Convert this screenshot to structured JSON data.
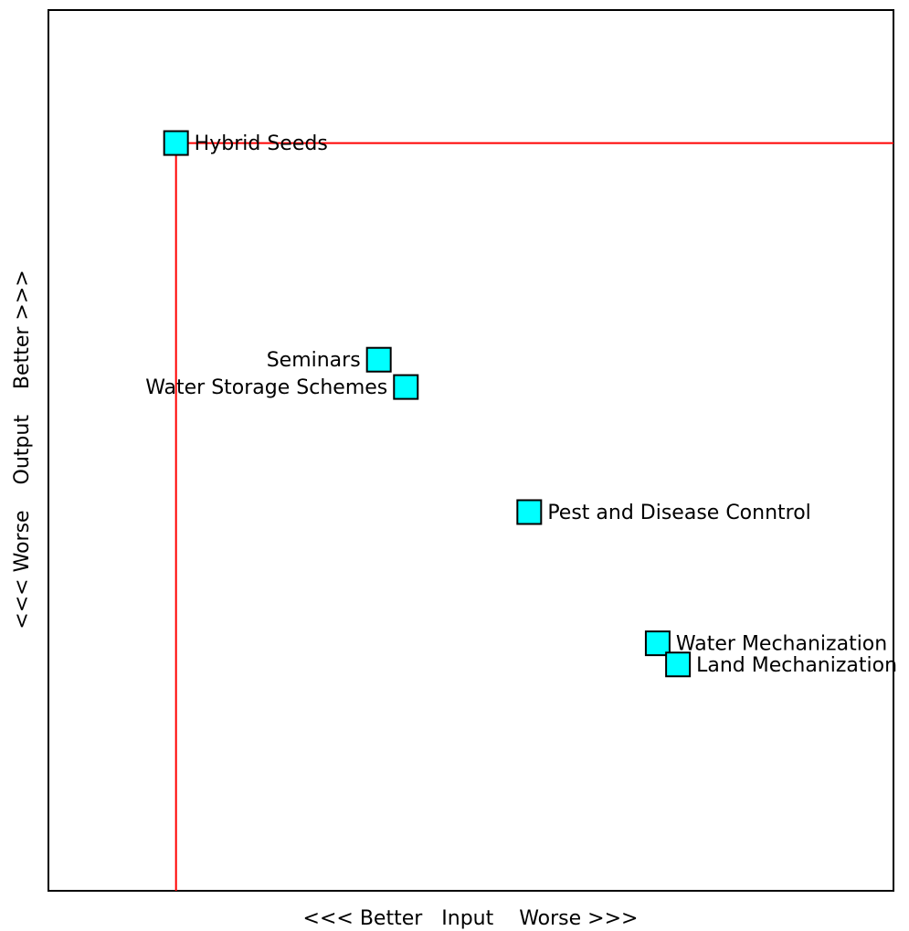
{
  "colors": {
    "background": "#ffffff",
    "frame": "#000000",
    "frontier_line": "#ff0000",
    "marker_fill": "#00ffff",
    "marker_stroke": "#000000"
  },
  "chart_data": {
    "type": "scatter",
    "title": "",
    "xlabel": "<<< Better   Input    Worse >>>",
    "ylabel": "<<< Worse    Output    Better >>>",
    "xlim": [
      0,
      100
    ],
    "ylim": [
      0,
      100
    ],
    "grid": false,
    "legend": "none",
    "frontier": {
      "x": 15.1,
      "y": 84.9
    },
    "points": [
      {
        "label": "Hybrid Seeds",
        "x": 15.1,
        "y": 84.9,
        "label_side": "right"
      },
      {
        "label": "Seminars",
        "x": 39.1,
        "y": 60.3,
        "label_side": "left"
      },
      {
        "label": "Water Storage Schemes",
        "x": 42.3,
        "y": 57.2,
        "label_side": "left"
      },
      {
        "label": "Pest and Disease Conntrol",
        "x": 56.9,
        "y": 43.0,
        "label_side": "right"
      },
      {
        "label": "Water Mechanization",
        "x": 72.1,
        "y": 28.1,
        "label_side": "right"
      },
      {
        "label": "Land Mechanization",
        "x": 74.5,
        "y": 25.7,
        "label_side": "right"
      }
    ]
  }
}
